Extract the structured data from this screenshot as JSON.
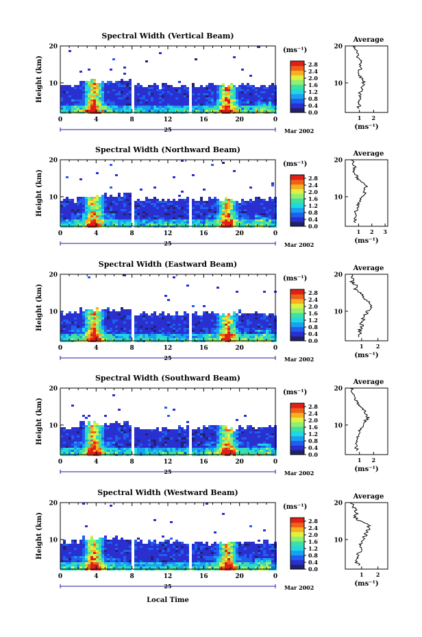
{
  "chart_data": {
    "type": "heatmap",
    "shared": {
      "x_ticks": [
        "0",
        "4",
        "8",
        "12",
        "16",
        "20",
        "0"
      ],
      "x_range_hours": [
        0,
        24
      ],
      "day_label": "25",
      "date_label": "Mar 2002",
      "y_ticks": [
        "20",
        "10"
      ],
      "y_label": "Height (km)",
      "y_range_km": [
        2,
        20
      ],
      "colorbar_unit": "(ms⁻¹)",
      "colorbar_ticks": [
        "2.8",
        "2.4",
        "2.0",
        "1.6",
        "1.2",
        "0.8",
        "0.4",
        "0.0"
      ],
      "colorbar_range": [
        0.0,
        3.0
      ],
      "colors": [
        "#22226a",
        "#2a2fd0",
        "#2060f0",
        "#1aa0f0",
        "#20d8e0",
        "#40e0a0",
        "#90f070",
        "#e0f040",
        "#f8b020",
        "#f06018",
        "#e02018"
      ],
      "profile_title": "Average",
      "profile_ylabel": "",
      "profile_unit": "(ms⁻¹)",
      "x_axis_title": "Local Time"
    },
    "panels": [
      {
        "title": "Spectral Width (Vertical Beam)",
        "profile_x_ticks": [
          "1",
          "2"
        ],
        "profile_xlim": [
          0,
          3
        ],
        "profile": [
          [
            0.6,
            20
          ],
          [
            0.7,
            19
          ],
          [
            0.9,
            18
          ],
          [
            0.8,
            17
          ],
          [
            1.1,
            16
          ],
          [
            1.0,
            15
          ],
          [
            1.2,
            14
          ],
          [
            0.9,
            13
          ],
          [
            1.0,
            12
          ],
          [
            1.2,
            11
          ],
          [
            1.3,
            10
          ],
          [
            1.2,
            9
          ],
          [
            1.1,
            8
          ],
          [
            1.0,
            7
          ],
          [
            1.1,
            6
          ],
          [
            0.9,
            5
          ],
          [
            1.0,
            4
          ],
          [
            0.9,
            3
          ]
        ]
      },
      {
        "title": "Spectral Width (Northward Beam)",
        "profile_x_ticks": [
          "1",
          "2",
          "3"
        ],
        "profile_xlim": [
          0,
          3.2
        ],
        "profile": [
          [
            0.5,
            20
          ],
          [
            0.6,
            19
          ],
          [
            0.7,
            18
          ],
          [
            0.6,
            17
          ],
          [
            0.8,
            16
          ],
          [
            0.9,
            15
          ],
          [
            1.2,
            14
          ],
          [
            1.6,
            13
          ],
          [
            1.4,
            12
          ],
          [
            1.5,
            11
          ],
          [
            1.3,
            10
          ],
          [
            1.1,
            9
          ],
          [
            1.0,
            8
          ],
          [
            0.9,
            7
          ],
          [
            0.8,
            6
          ],
          [
            0.8,
            5
          ],
          [
            0.7,
            4
          ],
          [
            0.8,
            3
          ]
        ]
      },
      {
        "title": "Spectral Width (Eastward Beam)",
        "profile_x_ticks": [
          "1",
          "2"
        ],
        "profile_xlim": [
          0,
          2.6
        ],
        "profile": [
          [
            0.4,
            20
          ],
          [
            0.5,
            19
          ],
          [
            0.4,
            18
          ],
          [
            0.7,
            17
          ],
          [
            0.6,
            16
          ],
          [
            0.9,
            15
          ],
          [
            1.1,
            14
          ],
          [
            1.3,
            13
          ],
          [
            1.6,
            12
          ],
          [
            1.5,
            11
          ],
          [
            1.4,
            10
          ],
          [
            1.2,
            9
          ],
          [
            1.1,
            8
          ],
          [
            1.0,
            7
          ],
          [
            1.0,
            6
          ],
          [
            0.9,
            5
          ],
          [
            0.9,
            4
          ],
          [
            0.8,
            3
          ]
        ]
      },
      {
        "title": "Spectral Width (Southward Beam)",
        "profile_x_ticks": [
          "1",
          "2"
        ],
        "profile_xlim": [
          0,
          3.0
        ],
        "profile": [
          [
            0.4,
            20
          ],
          [
            0.5,
            19
          ],
          [
            0.6,
            18
          ],
          [
            0.7,
            17
          ],
          [
            0.9,
            16
          ],
          [
            1.1,
            15
          ],
          [
            1.4,
            14
          ],
          [
            1.5,
            13
          ],
          [
            1.6,
            12
          ],
          [
            1.4,
            11
          ],
          [
            1.3,
            10
          ],
          [
            1.1,
            9
          ],
          [
            1.0,
            8
          ],
          [
            0.9,
            7
          ],
          [
            0.9,
            6
          ],
          [
            0.8,
            5
          ],
          [
            0.8,
            4
          ],
          [
            0.8,
            3
          ]
        ]
      },
      {
        "title": "Spectral Width (Westward Beam)",
        "profile_x_ticks": [
          "1",
          "2"
        ],
        "profile_xlim": [
          0,
          2.6
        ],
        "profile": [
          [
            0.4,
            20
          ],
          [
            0.5,
            19
          ],
          [
            0.6,
            18
          ],
          [
            0.7,
            17
          ],
          [
            0.6,
            16
          ],
          [
            0.9,
            15
          ],
          [
            1.4,
            14
          ],
          [
            1.5,
            13
          ],
          [
            1.3,
            12
          ],
          [
            1.2,
            11
          ],
          [
            1.1,
            10
          ],
          [
            1.0,
            9
          ],
          [
            0.9,
            8
          ],
          [
            0.9,
            7
          ],
          [
            0.8,
            6
          ],
          [
            0.8,
            5
          ],
          [
            0.7,
            4
          ],
          [
            0.8,
            3
          ]
        ]
      }
    ]
  }
}
